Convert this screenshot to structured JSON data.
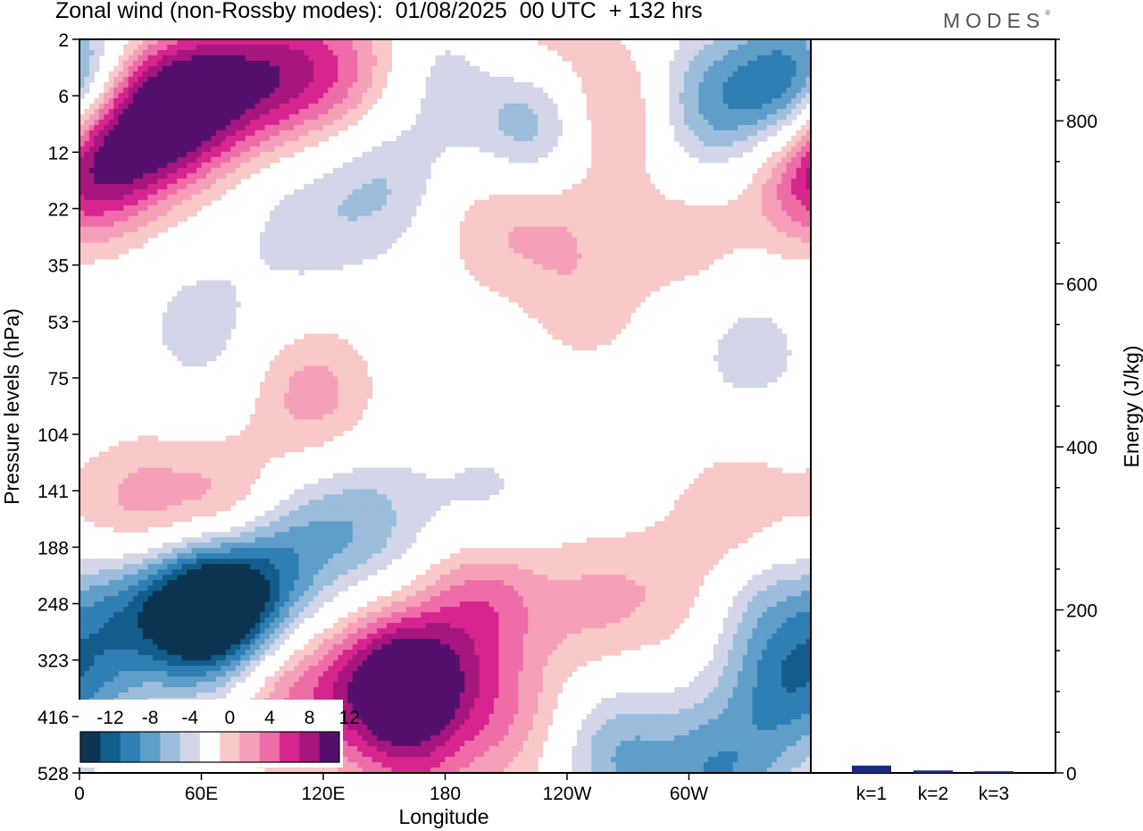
{
  "header": {
    "title": "Zonal wind (non-Rossby modes):  01/08/2025  00 UTC  + 132 hrs",
    "brand": "MODES",
    "brand_mark": "®"
  },
  "chart_data": [
    {
      "type": "heatmap",
      "title": "Zonal wind (non-Rossby modes):  01/08/2025  00 UTC  + 132 hrs",
      "xlabel": "Longitude",
      "ylabel": "Pressure levels (hPa)",
      "x_ticks": [
        "0",
        "60E",
        "120E",
        "180",
        "120W",
        "60W"
      ],
      "x_tick_values": [
        0,
        60,
        120,
        180,
        240,
        300
      ],
      "xlim": [
        0,
        360
      ],
      "y_ticks": [
        "2",
        "6",
        "12",
        "22",
        "35",
        "53",
        "75",
        "104",
        "141",
        "188",
        "248",
        "323",
        "416",
        "528"
      ],
      "colorbar": {
        "tick_labels": [
          "-12",
          "-8",
          "-4",
          "0",
          "4",
          "8",
          "12"
        ],
        "levels": [
          -14,
          -12,
          -10,
          -8,
          -6,
          -4,
          -2,
          2,
          4,
          6,
          8,
          10,
          12,
          14
        ],
        "colors": [
          "#0b3552",
          "#125d8c",
          "#2f7fb5",
          "#5f9ec8",
          "#9cbddb",
          "#d2d6e8",
          "#ffffff",
          "#f9c8c8",
          "#f59fb8",
          "#ee6da8",
          "#d7258f",
          "#a6167e",
          "#55106e"
        ]
      },
      "blobs": [
        {
          "x": 7,
          "y": 0.8,
          "v": -5
        },
        {
          "x": 28,
          "y": 1.2,
          "v": 5
        },
        {
          "x": 12,
          "y": 2.1,
          "v": 8
        },
        {
          "x": 40,
          "y": 1.4,
          "v": 8
        },
        {
          "x": 65,
          "y": 0.9,
          "v": 9
        },
        {
          "x": 100,
          "y": 0.6,
          "v": 8
        },
        {
          "x": 135,
          "y": 0.5,
          "v": 5
        },
        {
          "x": 175,
          "y": 0.6,
          "v": -3
        },
        {
          "x": 225,
          "y": 0.3,
          "v": 5
        },
        {
          "x": 225,
          "y": 1.3,
          "v": -8
        },
        {
          "x": 265,
          "y": 1.3,
          "v": 6
        },
        {
          "x": 305,
          "y": 1.2,
          "v": -6
        },
        {
          "x": 345,
          "y": 0.9,
          "v": -8
        },
        {
          "x": 355,
          "y": 2.5,
          "v": 5
        },
        {
          "x": 150,
          "y": 2.6,
          "v": -4
        },
        {
          "x": 110,
          "y": 3.3,
          "v": -3
        },
        {
          "x": 200,
          "y": 3.3,
          "v": 3
        },
        {
          "x": 235,
          "y": 3.3,
          "v": 3
        },
        {
          "x": 300,
          "y": 3.5,
          "v": 3
        },
        {
          "x": 60,
          "y": 5.1,
          "v": -3
        },
        {
          "x": 250,
          "y": 4.8,
          "v": 2.5
        },
        {
          "x": 330,
          "y": 5.5,
          "v": -3
        },
        {
          "x": 115,
          "y": 6.3,
          "v": 5
        },
        {
          "x": 30,
          "y": 8.3,
          "v": 5
        },
        {
          "x": 78,
          "y": 8.6,
          "v": 9
        },
        {
          "x": 140,
          "y": 8.6,
          "v": -5
        },
        {
          "x": 200,
          "y": 8.3,
          "v": -3
        },
        {
          "x": 325,
          "y": 8.4,
          "v": 4
        },
        {
          "x": 15,
          "y": 10.2,
          "v": -8
        },
        {
          "x": 55,
          "y": 10.2,
          "v": -8
        },
        {
          "x": 70,
          "y": 10.0,
          "v": -14
        },
        {
          "x": 95,
          "y": 9.0,
          "v": -9
        },
        {
          "x": 300,
          "y": 9.8,
          "v": 3
        },
        {
          "x": 335,
          "y": 9.9,
          "v": -5
        },
        {
          "x": 200,
          "y": 9.9,
          "v": 7
        },
        {
          "x": 255,
          "y": 10.0,
          "v": 4
        },
        {
          "x": 360,
          "y": 10.0,
          "v": 3
        },
        {
          "x": 100,
          "y": 11.6,
          "v": 6
        },
        {
          "x": 165,
          "y": 11.4,
          "v": 12
        },
        {
          "x": 145,
          "y": 11.6,
          "v": 7
        },
        {
          "x": 210,
          "y": 12.0,
          "v": 5
        },
        {
          "x": 265,
          "y": 12.7,
          "v": -6
        },
        {
          "x": 315,
          "y": 13.0,
          "v": -7
        },
        {
          "x": 350,
          "y": 11.5,
          "v": -8
        },
        {
          "x": 165,
          "y": 13.2,
          "v": 4
        },
        {
          "x": 55,
          "y": 14.7,
          "v": 2.5
        },
        {
          "x": 290,
          "y": 15.0,
          "v": -3.5
        },
        {
          "x": 235,
          "y": 14.5,
          "v": 3
        },
        {
          "x": 175,
          "y": 15.8,
          "v": 3
        },
        {
          "x": 255,
          "y": 15.8,
          "v": -3
        }
      ]
    },
    {
      "type": "bar",
      "ylabel": "Energy (J/kg)",
      "categories": [
        "k=1",
        "k=2",
        "k=3"
      ],
      "values": [
        9,
        3,
        2
      ],
      "ylim": [
        0,
        900
      ],
      "y_ticks": [
        0,
        200,
        400,
        600,
        800
      ],
      "colors": [
        "#1c2a7d",
        "#1c2a7d",
        "#1c2a7d"
      ]
    }
  ]
}
